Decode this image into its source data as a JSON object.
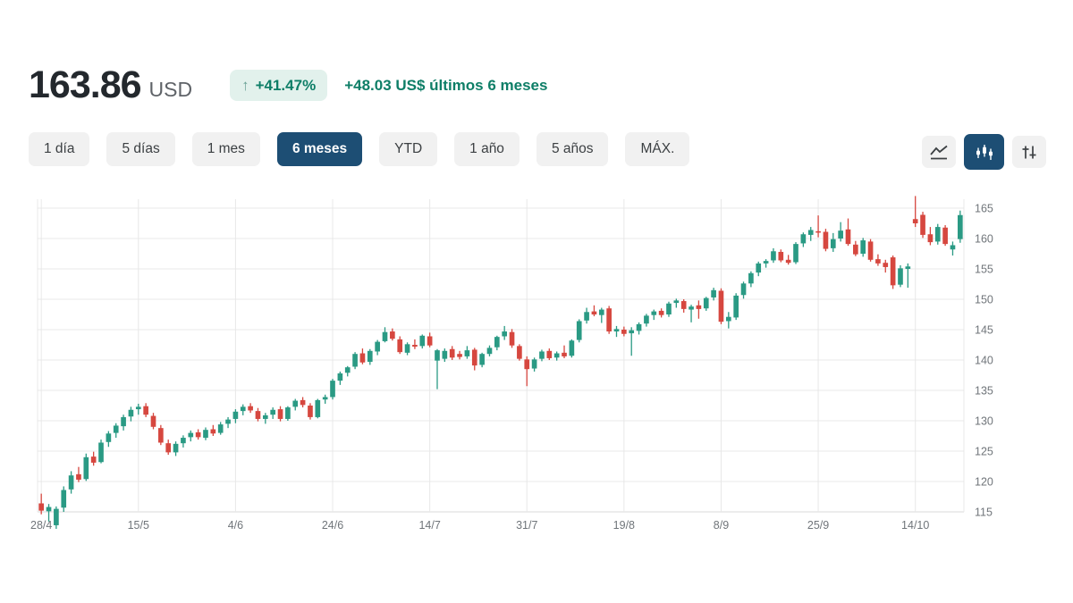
{
  "header": {
    "price": "163.86",
    "currency": "USD",
    "arrow_icon": "↑",
    "change_percent": "+41.47%",
    "change_detail": "+48.03 US$ últimos 6 meses"
  },
  "range_tabs": [
    {
      "label": "1 día",
      "selected": false
    },
    {
      "label": "5 días",
      "selected": false
    },
    {
      "label": "1 mes",
      "selected": false
    },
    {
      "label": "6 meses",
      "selected": true
    },
    {
      "label": "YTD",
      "selected": false
    },
    {
      "label": "1 año",
      "selected": false
    },
    {
      "label": "5 años",
      "selected": false
    },
    {
      "label": "MÁX.",
      "selected": false
    }
  ],
  "chart_type_toolbar": [
    {
      "name": "line-chart",
      "selected": false
    },
    {
      "name": "candlestick-chart",
      "selected": true
    },
    {
      "name": "ohlc-settings",
      "selected": false
    }
  ],
  "colors": {
    "accent_navy": "#1d4e74",
    "positive_green": "#0e7e67",
    "badge_bg": "#e2f1ec",
    "candle_up": "#2a9a84",
    "candle_down": "#d6473f",
    "grid": "#e8e8e8",
    "axis_text": "#70757a"
  },
  "chart_data": {
    "type": "candlestick",
    "title": "",
    "x_labels": [
      "28/4",
      "15/5",
      "4/6",
      "24/6",
      "14/7",
      "31/7",
      "19/8",
      "8/9",
      "25/9",
      "14/10"
    ],
    "x_label_indices": [
      0,
      13,
      26,
      39,
      52,
      65,
      78,
      91,
      104,
      117
    ],
    "y_ticks": [
      115,
      120,
      125,
      130,
      135,
      140,
      145,
      150,
      155,
      160,
      165
    ],
    "ylim": [
      112,
      167.5
    ],
    "legend": "none",
    "grid": "on",
    "candles_ohlc": [
      [
        116.4,
        118.0,
        114.6,
        115.2
      ],
      [
        115.1,
        116.3,
        113.4,
        115.8
      ],
      [
        112.8,
        115.9,
        112.2,
        115.5
      ],
      [
        115.7,
        119.2,
        115.0,
        118.6
      ],
      [
        118.7,
        121.7,
        118.0,
        121.0
      ],
      [
        121.2,
        122.4,
        119.9,
        120.3
      ],
      [
        120.4,
        124.6,
        120.1,
        124.0
      ],
      [
        124.1,
        124.9,
        122.6,
        123.1
      ],
      [
        123.2,
        126.9,
        123.0,
        126.4
      ],
      [
        126.5,
        128.3,
        125.7,
        127.9
      ],
      [
        128.0,
        129.6,
        127.2,
        129.2
      ],
      [
        129.1,
        131.0,
        128.4,
        130.6
      ],
      [
        130.7,
        132.3,
        129.9,
        131.8
      ],
      [
        131.9,
        132.8,
        131.0,
        132.3
      ],
      [
        132.4,
        132.9,
        130.6,
        131.0
      ],
      [
        130.8,
        131.3,
        128.6,
        129.0
      ],
      [
        128.8,
        129.3,
        126.0,
        126.4
      ],
      [
        126.3,
        126.9,
        124.4,
        124.8
      ],
      [
        124.8,
        126.6,
        124.2,
        126.2
      ],
      [
        126.3,
        127.6,
        125.6,
        127.2
      ],
      [
        127.3,
        128.4,
        126.6,
        128.0
      ],
      [
        128.1,
        128.6,
        126.9,
        127.3
      ],
      [
        127.2,
        128.9,
        126.8,
        128.5
      ],
      [
        128.6,
        129.3,
        127.5,
        127.9
      ],
      [
        128.0,
        129.8,
        127.7,
        129.4
      ],
      [
        129.5,
        130.6,
        128.8,
        130.2
      ],
      [
        130.3,
        131.9,
        129.6,
        131.5
      ],
      [
        131.6,
        132.7,
        130.9,
        132.3
      ],
      [
        132.4,
        132.9,
        131.3,
        131.7
      ],
      [
        131.6,
        132.1,
        129.9,
        130.3
      ],
      [
        130.3,
        131.3,
        129.5,
        130.9
      ],
      [
        131.0,
        132.2,
        130.3,
        131.8
      ],
      [
        131.9,
        132.4,
        129.9,
        130.3
      ],
      [
        130.3,
        132.4,
        130.0,
        132.2
      ],
      [
        132.3,
        133.6,
        131.7,
        133.3
      ],
      [
        133.4,
        133.9,
        132.2,
        132.6
      ],
      [
        132.5,
        132.9,
        130.2,
        130.6
      ],
      [
        130.6,
        133.6,
        130.4,
        133.4
      ],
      [
        133.5,
        134.3,
        132.8,
        133.9
      ],
      [
        133.9,
        136.9,
        133.5,
        136.6
      ],
      [
        136.6,
        138.1,
        135.9,
        137.8
      ],
      [
        137.9,
        139.0,
        137.3,
        138.8
      ],
      [
        138.9,
        141.3,
        138.5,
        141.0
      ],
      [
        141.1,
        141.9,
        139.3,
        139.6
      ],
      [
        139.7,
        141.8,
        139.2,
        141.5
      ],
      [
        141.4,
        143.3,
        140.8,
        143.0
      ],
      [
        143.1,
        145.4,
        142.9,
        144.6
      ],
      [
        144.7,
        145.2,
        143.2,
        143.5
      ],
      [
        143.4,
        143.9,
        141.0,
        141.3
      ],
      [
        141.2,
        142.9,
        140.8,
        142.6
      ],
      [
        142.5,
        143.4,
        141.8,
        142.2
      ],
      [
        142.3,
        144.2,
        141.9,
        144.0
      ],
      [
        143.9,
        144.5,
        142.1,
        142.4
      ],
      [
        139.9,
        141.8,
        135.2,
        141.6
      ],
      [
        140.2,
        141.9,
        139.7,
        141.5
      ],
      [
        141.8,
        142.3,
        140.0,
        140.4
      ],
      [
        141.0,
        141.5,
        140.1,
        140.5
      ],
      [
        140.6,
        142.3,
        140.2,
        141.6
      ],
      [
        141.7,
        142.0,
        138.3,
        139.1
      ],
      [
        139.2,
        141.2,
        138.8,
        141.0
      ],
      [
        141.0,
        142.4,
        140.6,
        142.0
      ],
      [
        142.1,
        144.0,
        141.6,
        143.8
      ],
      [
        143.9,
        145.6,
        143.3,
        144.7
      ],
      [
        144.6,
        145.1,
        142.0,
        142.4
      ],
      [
        142.3,
        142.6,
        139.9,
        140.2
      ],
      [
        140.1,
        140.6,
        135.7,
        138.5
      ],
      [
        138.6,
        140.4,
        138.1,
        140.1
      ],
      [
        140.2,
        141.7,
        139.8,
        141.4
      ],
      [
        141.5,
        141.9,
        140.0,
        140.3
      ],
      [
        140.4,
        141.4,
        139.9,
        141.1
      ],
      [
        141.2,
        142.4,
        140.3,
        140.6
      ],
      [
        140.7,
        143.4,
        140.4,
        143.2
      ],
      [
        143.3,
        146.7,
        142.9,
        146.4
      ],
      [
        146.5,
        148.6,
        146.0,
        147.9
      ],
      [
        148.0,
        149.0,
        147.2,
        147.5
      ],
      [
        147.4,
        148.6,
        146.1,
        148.3
      ],
      [
        148.5,
        148.9,
        144.3,
        144.7
      ],
      [
        144.7,
        145.6,
        143.8,
        145.1
      ],
      [
        145.0,
        145.5,
        143.9,
        144.3
      ],
      [
        144.4,
        145.4,
        140.7,
        144.9
      ],
      [
        144.8,
        146.2,
        144.2,
        145.9
      ],
      [
        146.0,
        147.6,
        145.5,
        147.3
      ],
      [
        147.4,
        148.3,
        146.6,
        148.0
      ],
      [
        148.1,
        148.5,
        147.0,
        147.4
      ],
      [
        147.5,
        149.6,
        147.1,
        149.3
      ],
      [
        149.4,
        150.1,
        148.6,
        149.8
      ],
      [
        149.7,
        150.0,
        147.8,
        148.4
      ],
      [
        148.3,
        149.1,
        146.2,
        148.8
      ],
      [
        149.0,
        149.8,
        146.8,
        148.4
      ],
      [
        148.5,
        150.4,
        148.1,
        150.2
      ],
      [
        150.3,
        151.9,
        149.8,
        151.5
      ],
      [
        151.4,
        151.8,
        145.9,
        146.3
      ],
      [
        146.4,
        147.9,
        145.2,
        147.1
      ],
      [
        147.0,
        151.0,
        146.6,
        150.6
      ],
      [
        150.7,
        152.9,
        150.1,
        152.6
      ],
      [
        152.6,
        154.6,
        152.0,
        154.3
      ],
      [
        154.4,
        156.2,
        153.8,
        155.9
      ],
      [
        155.9,
        156.6,
        155.2,
        156.3
      ],
      [
        156.4,
        158.4,
        156.0,
        157.9
      ],
      [
        157.8,
        158.2,
        156.1,
        156.4
      ],
      [
        156.5,
        157.3,
        155.7,
        156.0
      ],
      [
        156.1,
        159.4,
        155.8,
        159.1
      ],
      [
        159.2,
        161.0,
        158.6,
        160.7
      ],
      [
        160.6,
        161.9,
        159.6,
        161.4
      ],
      [
        161.2,
        163.8,
        160.2,
        161.0
      ],
      [
        161.1,
        161.6,
        157.9,
        158.3
      ],
      [
        158.4,
        160.9,
        157.8,
        159.9
      ],
      [
        160.0,
        162.7,
        159.5,
        161.3
      ],
      [
        161.5,
        163.3,
        158.8,
        159.1
      ],
      [
        159.0,
        159.6,
        157.1,
        157.4
      ],
      [
        157.5,
        160.1,
        157.0,
        159.7
      ],
      [
        159.5,
        159.9,
        156.2,
        156.5
      ],
      [
        156.6,
        157.4,
        155.5,
        155.9
      ],
      [
        156.0,
        156.5,
        154.4,
        155.3
      ],
      [
        156.9,
        157.2,
        151.7,
        152.3
      ],
      [
        152.4,
        155.6,
        152.0,
        155.1
      ],
      [
        155.0,
        155.9,
        151.9,
        155.4
      ],
      [
        163.2,
        167.0,
        161.9,
        162.5
      ],
      [
        163.9,
        164.4,
        160.1,
        160.6
      ],
      [
        160.7,
        161.9,
        158.9,
        159.4
      ],
      [
        159.5,
        162.4,
        159.0,
        161.9
      ],
      [
        161.8,
        162.2,
        158.8,
        159.1
      ],
      [
        158.2,
        159.5,
        157.2,
        158.9
      ],
      [
        159.9,
        164.6,
        159.3,
        163.86
      ]
    ]
  }
}
